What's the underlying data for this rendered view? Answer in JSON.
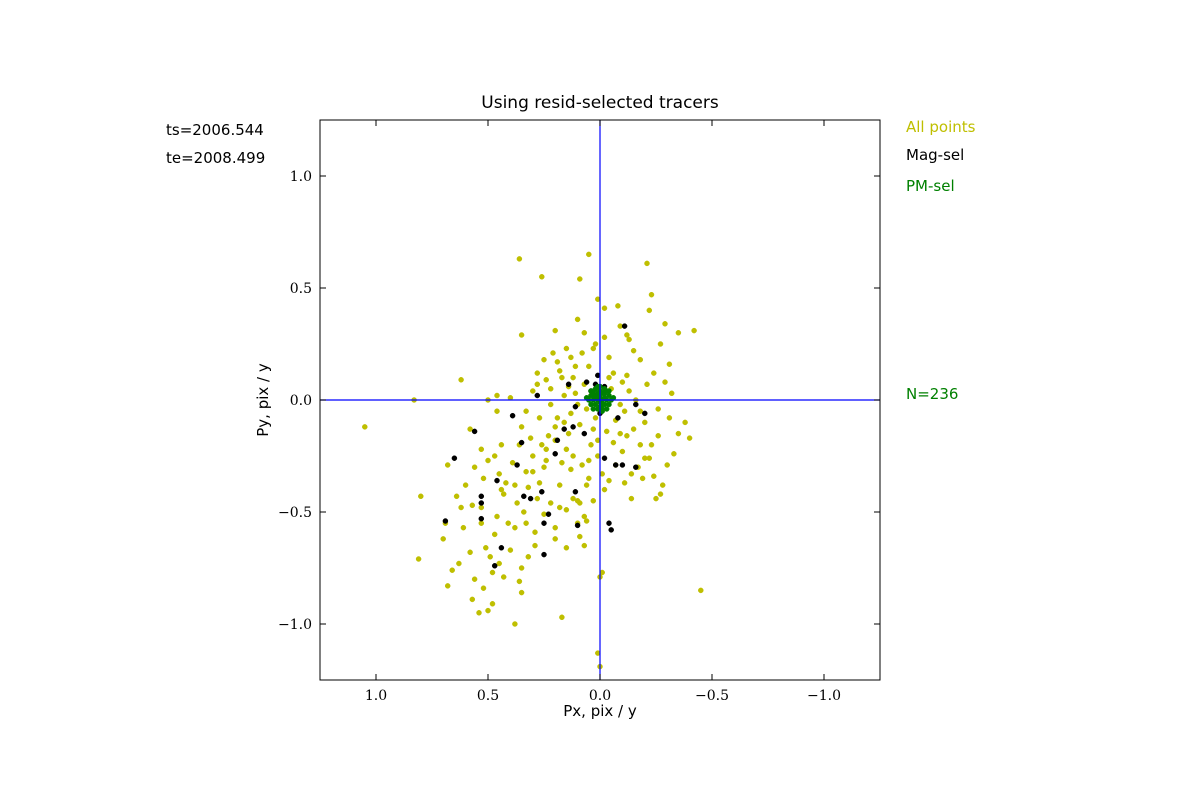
{
  "chart_data": {
    "type": "scatter",
    "title": "Using resid-selected tracers",
    "xlabel": "Px, pix / y",
    "ylabel": "Py, pix / y",
    "xlim": [
      1.25,
      -1.25
    ],
    "ylim": [
      -1.25,
      1.25
    ],
    "x_inverted": true,
    "xticks": [
      1.0,
      0.5,
      0.0,
      -0.5,
      -1.0
    ],
    "xtick_labels": [
      "1.0",
      "0.5",
      "0.0",
      "−0.5",
      "−1.0"
    ],
    "yticks": [
      1.0,
      0.5,
      0.0,
      -0.5,
      -1.0
    ],
    "ytick_labels": [
      "1.0",
      "0.5",
      "0.0",
      "−0.5",
      "−1.0"
    ],
    "grid": false,
    "reference_lines": {
      "x": 0.0,
      "y": 0.0,
      "color": "#0000ff"
    },
    "side_text": {
      "ts": "ts=2006.544",
      "te": "te=2008.499",
      "legend_all": "All points",
      "legend_mag": "Mag-sel",
      "legend_pm": "PM-sel",
      "count": "N=236"
    },
    "colors": {
      "all": "#bfbf00",
      "mag": "#000000",
      "pm": "#008000",
      "count": "#008000",
      "axes": "#000000",
      "ref": "#0000ff"
    },
    "series": [
      {
        "name": "All points",
        "color": "#bfbf00",
        "points": [
          [
            1.05,
            -0.12
          ],
          [
            0.83,
            0.0
          ],
          [
            0.8,
            -0.43
          ],
          [
            0.81,
            -0.71
          ],
          [
            0.62,
            0.09
          ],
          [
            0.58,
            -0.13
          ],
          [
            0.69,
            -0.55
          ],
          [
            0.7,
            -0.62
          ],
          [
            0.66,
            -0.76
          ],
          [
            0.63,
            -0.73
          ],
          [
            0.68,
            -0.83
          ],
          [
            0.61,
            -0.57
          ],
          [
            0.64,
            -0.43
          ],
          [
            0.68,
            -0.29
          ],
          [
            0.6,
            -0.38
          ],
          [
            0.57,
            -0.47
          ],
          [
            0.56,
            -0.8
          ],
          [
            0.57,
            -0.89
          ],
          [
            0.54,
            -0.95
          ],
          [
            0.5,
            -0.94
          ],
          [
            0.48,
            -0.91
          ],
          [
            0.51,
            -0.66
          ],
          [
            0.49,
            -0.7
          ],
          [
            0.47,
            -0.6
          ],
          [
            0.53,
            -0.55
          ],
          [
            0.52,
            -0.35
          ],
          [
            0.5,
            -0.27
          ],
          [
            0.47,
            -0.25
          ],
          [
            0.45,
            -0.33
          ],
          [
            0.43,
            -0.42
          ],
          [
            0.46,
            -0.52
          ],
          [
            0.43,
            -0.79
          ],
          [
            0.38,
            -1.0
          ],
          [
            0.35,
            -0.86
          ],
          [
            0.36,
            -0.81
          ],
          [
            0.4,
            -0.67
          ],
          [
            0.38,
            -0.57
          ],
          [
            0.37,
            -0.46
          ],
          [
            0.39,
            -0.28
          ],
          [
            0.36,
            -0.2
          ],
          [
            0.35,
            -0.12
          ],
          [
            0.46,
            -0.05
          ],
          [
            0.5,
            0.0
          ],
          [
            0.46,
            0.02
          ],
          [
            0.4,
            0.01
          ],
          [
            0.36,
            0.63
          ],
          [
            0.35,
            0.29
          ],
          [
            0.33,
            -0.05
          ],
          [
            0.31,
            -0.17
          ],
          [
            0.33,
            -0.32
          ],
          [
            0.34,
            -0.5
          ],
          [
            0.29,
            -0.59
          ],
          [
            0.28,
            -0.44
          ],
          [
            0.27,
            -0.37
          ],
          [
            0.25,
            -0.3
          ],
          [
            0.24,
            -0.22
          ],
          [
            0.23,
            -0.16
          ],
          [
            0.22,
            -0.46
          ],
          [
            0.2,
            -0.57
          ],
          [
            0.18,
            -0.38
          ],
          [
            0.17,
            -0.28
          ],
          [
            0.15,
            -0.22
          ],
          [
            0.13,
            -0.31
          ],
          [
            0.12,
            -0.44
          ],
          [
            0.1,
            -0.55
          ],
          [
            0.09,
            -0.61
          ],
          [
            0.07,
            -0.52
          ],
          [
            0.06,
            -0.38
          ],
          [
            0.05,
            -0.27
          ],
          [
            0.04,
            -0.2
          ],
          [
            0.03,
            -0.13
          ],
          [
            0.02,
            -0.08
          ],
          [
            0.01,
            -0.18
          ],
          [
            -0.01,
            -0.33
          ],
          [
            -0.02,
            -0.4
          ],
          [
            -0.01,
            -0.77
          ],
          [
            0.0,
            -0.79
          ],
          [
            0.07,
            -0.65
          ],
          [
            0.06,
            -0.54
          ],
          [
            0.01,
            -1.13
          ],
          [
            0.17,
            -0.97
          ],
          [
            0.0,
            -1.19
          ],
          [
            -0.45,
            -0.85
          ],
          [
            0.26,
            0.55
          ],
          [
            0.2,
            0.31
          ],
          [
            0.19,
            0.17
          ],
          [
            0.15,
            0.23
          ],
          [
            0.12,
            0.1
          ],
          [
            0.09,
            0.54
          ],
          [
            0.05,
            0.65
          ],
          [
            0.01,
            0.45
          ],
          [
            -0.02,
            0.41
          ],
          [
            -0.08,
            0.42
          ],
          [
            -0.09,
            0.33
          ],
          [
            -0.12,
            0.29
          ],
          [
            -0.15,
            0.22
          ],
          [
            -0.13,
            0.27
          ],
          [
            -0.21,
            0.61
          ],
          [
            -0.23,
            0.47
          ],
          [
            -0.35,
            0.3
          ],
          [
            -0.42,
            0.31
          ],
          [
            -0.29,
            0.34
          ],
          [
            -0.27,
            0.25
          ],
          [
            -0.31,
            0.16
          ],
          [
            -0.29,
            0.08
          ],
          [
            -0.32,
            0.03
          ],
          [
            -0.31,
            -0.08
          ],
          [
            -0.35,
            -0.15
          ],
          [
            -0.38,
            -0.1
          ],
          [
            -0.4,
            -0.17
          ],
          [
            -0.33,
            -0.24
          ],
          [
            -0.3,
            -0.29
          ],
          [
            -0.28,
            -0.38
          ],
          [
            -0.27,
            -0.42
          ],
          [
            -0.24,
            -0.34
          ],
          [
            -0.22,
            -0.26
          ],
          [
            -0.18,
            -0.2
          ],
          [
            -0.14,
            -0.33
          ],
          [
            -0.12,
            -0.16
          ],
          [
            -0.1,
            -0.23
          ],
          [
            -0.07,
            -0.09
          ],
          [
            -0.05,
            0.05
          ],
          [
            -0.04,
            0.1
          ],
          [
            -0.06,
            -0.19
          ],
          [
            0.24,
            0.09
          ],
          [
            0.28,
            0.07
          ],
          [
            0.3,
            0.04
          ],
          [
            0.22,
            0.05
          ],
          [
            0.18,
            0.13
          ],
          [
            0.14,
            0.06
          ],
          [
            0.16,
            0.02
          ],
          [
            0.11,
            0.15
          ],
          [
            0.08,
            0.21
          ],
          [
            0.05,
            0.15
          ],
          [
            0.03,
            0.23
          ],
          [
            0.02,
            0.25
          ],
          [
            -0.02,
            0.28
          ],
          [
            -0.04,
            0.19
          ],
          [
            -0.06,
            0.12
          ],
          [
            -0.1,
            0.08
          ],
          [
            -0.13,
            0.04
          ],
          [
            -0.16,
            0.0
          ],
          [
            -0.18,
            -0.05
          ],
          [
            -0.2,
            -0.1
          ],
          [
            -0.15,
            -0.13
          ],
          [
            -0.11,
            -0.05
          ],
          [
            -0.09,
            -0.02
          ],
          [
            0.1,
            -0.02
          ],
          [
            0.13,
            -0.06
          ],
          [
            0.16,
            -0.1
          ],
          [
            0.2,
            -0.12
          ],
          [
            0.14,
            -0.15
          ],
          [
            0.09,
            -0.11
          ],
          [
            0.06,
            -0.04
          ],
          [
            0.04,
            0.02
          ],
          [
            0.07,
            0.07
          ],
          [
            0.11,
            0.03
          ],
          [
            0.27,
            -0.08
          ],
          [
            0.22,
            -0.02
          ],
          [
            0.3,
            -0.25
          ],
          [
            0.26,
            -0.2
          ],
          [
            0.2,
            -0.18
          ],
          [
            0.44,
            -0.2
          ],
          [
            0.42,
            -0.37
          ],
          [
            0.32,
            -0.39
          ],
          [
            0.15,
            -0.49
          ],
          [
            0.18,
            -0.48
          ],
          [
            0.09,
            -0.46
          ],
          [
            0.05,
            -0.35
          ],
          [
            0.08,
            -0.29
          ],
          [
            0.12,
            -0.25
          ],
          [
            0.24,
            -0.27
          ],
          [
            0.3,
            -0.32
          ],
          [
            0.38,
            -0.38
          ],
          [
            0.33,
            -0.55
          ],
          [
            0.25,
            -0.51
          ],
          [
            0.2,
            -0.62
          ],
          [
            0.15,
            -0.66
          ],
          [
            0.29,
            -0.65
          ],
          [
            0.41,
            -0.55
          ],
          [
            0.53,
            -0.48
          ],
          [
            0.44,
            -0.4
          ],
          [
            0.53,
            -0.22
          ],
          [
            0.56,
            -0.3
          ],
          [
            0.62,
            -0.48
          ],
          [
            0.48,
            -0.77
          ],
          [
            0.52,
            -0.84
          ],
          [
            0.58,
            -0.68
          ],
          [
            0.45,
            -0.73
          ],
          [
            0.35,
            -0.75
          ],
          [
            0.32,
            -0.7
          ],
          [
            0.1,
            -0.45
          ],
          [
            0.03,
            -0.45
          ],
          [
            -0.04,
            -0.36
          ],
          [
            -0.07,
            -0.29
          ],
          [
            -0.11,
            -0.37
          ],
          [
            -0.17,
            -0.3
          ],
          [
            -0.2,
            -0.26
          ],
          [
            -0.23,
            -0.2
          ],
          [
            -0.26,
            -0.16
          ],
          [
            -0.09,
            -0.15
          ],
          [
            0.01,
            -0.25
          ],
          [
            -0.03,
            -0.14
          ],
          [
            -0.14,
            -0.44
          ],
          [
            -0.19,
            -0.35
          ],
          [
            -0.25,
            -0.44
          ],
          [
            0.19,
            -0.08
          ],
          [
            0.17,
            0.1
          ],
          [
            0.21,
            0.21
          ],
          [
            0.1,
            0.36
          ],
          [
            0.07,
            0.3
          ],
          [
            0.13,
            0.19
          ],
          [
            0.25,
            0.18
          ],
          [
            0.28,
            0.12
          ],
          [
            -0.22,
            0.4
          ],
          [
            -0.18,
            0.18
          ],
          [
            -0.24,
            0.12
          ],
          [
            -0.21,
            0.07
          ],
          [
            -0.26,
            -0.04
          ],
          [
            -0.12,
            0.11
          ]
        ]
      },
      {
        "name": "Mag-sel",
        "color": "#000000",
        "points": [
          [
            0.65,
            -0.26
          ],
          [
            0.69,
            -0.54
          ],
          [
            0.56,
            -0.14
          ],
          [
            0.53,
            -0.43
          ],
          [
            0.53,
            -0.46
          ],
          [
            0.53,
            -0.53
          ],
          [
            0.46,
            -0.36
          ],
          [
            0.47,
            -0.74
          ],
          [
            0.44,
            -0.66
          ],
          [
            0.39,
            -0.07
          ],
          [
            0.37,
            -0.29
          ],
          [
            0.35,
            -0.19
          ],
          [
            0.34,
            -0.43
          ],
          [
            0.31,
            -0.44
          ],
          [
            0.28,
            0.02
          ],
          [
            0.26,
            -0.41
          ],
          [
            0.25,
            -0.69
          ],
          [
            0.25,
            -0.55
          ],
          [
            0.23,
            -0.51
          ],
          [
            0.2,
            -0.24
          ],
          [
            0.19,
            -0.18
          ],
          [
            0.16,
            -0.13
          ],
          [
            0.14,
            0.07
          ],
          [
            0.12,
            -0.12
          ],
          [
            0.11,
            -0.41
          ],
          [
            0.1,
            -0.56
          ],
          [
            0.07,
            -0.15
          ],
          [
            0.06,
            0.08
          ],
          [
            0.04,
            0.04
          ],
          [
            0.02,
            0.07
          ],
          [
            0.01,
            0.11
          ],
          [
            -0.02,
            0.06
          ],
          [
            -0.02,
            -0.26
          ],
          [
            -0.04,
            -0.55
          ],
          [
            -0.05,
            -0.58
          ],
          [
            -0.07,
            -0.29
          ],
          [
            -0.1,
            -0.29
          ],
          [
            -0.11,
            0.33
          ],
          [
            -0.08,
            -0.08
          ],
          [
            -0.16,
            -0.3
          ],
          [
            -0.2,
            -0.06
          ],
          [
            -0.16,
            -0.02
          ],
          [
            0.0,
            0.06
          ],
          [
            0.11,
            -0.03
          ],
          [
            0.0,
            -0.06
          ]
        ]
      },
      {
        "name": "PM-sel",
        "color": "#008000",
        "points": [
          [
            0.0,
            0.0
          ],
          [
            0.02,
            0.01
          ],
          [
            -0.02,
            0.01
          ],
          [
            0.01,
            0.03
          ],
          [
            -0.01,
            0.03
          ],
          [
            0.03,
            0.0
          ],
          [
            -0.03,
            0.0
          ],
          [
            0.02,
            -0.02
          ],
          [
            -0.02,
            -0.02
          ],
          [
            0.0,
            -0.03
          ],
          [
            0.0,
            0.04
          ],
          [
            0.04,
            0.02
          ],
          [
            -0.04,
            0.02
          ],
          [
            0.04,
            -0.02
          ],
          [
            -0.04,
            -0.02
          ],
          [
            0.01,
            -0.04
          ],
          [
            -0.01,
            -0.04
          ],
          [
            0.03,
            0.04
          ],
          [
            -0.03,
            0.04
          ],
          [
            0.05,
            0.0
          ],
          [
            -0.05,
            0.0
          ],
          [
            0.02,
            0.05
          ],
          [
            -0.02,
            0.05
          ],
          [
            0.03,
            -0.04
          ],
          [
            -0.03,
            -0.04
          ],
          [
            0.0,
            0.06
          ],
          [
            0.06,
            0.01
          ],
          [
            -0.06,
            0.01
          ],
          [
            0.01,
            0.0
          ],
          [
            -0.01,
            0.0
          ],
          [
            0.0,
            0.01
          ],
          [
            0.0,
            -0.01
          ],
          [
            0.02,
            0.02
          ],
          [
            -0.02,
            0.03
          ],
          [
            0.03,
            0.02
          ],
          [
            -0.01,
            -0.02
          ],
          [
            0.04,
            0.04
          ],
          [
            -0.04,
            0.04
          ],
          [
            0.01,
            0.06
          ],
          [
            -0.01,
            -0.05
          ]
        ]
      }
    ]
  }
}
